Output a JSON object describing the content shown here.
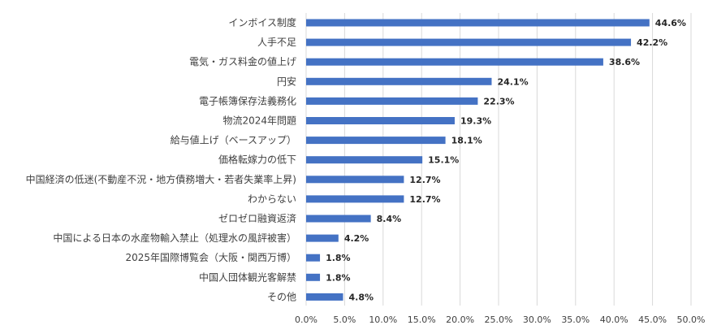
{
  "chart_data": {
    "type": "bar",
    "orientation": "horizontal",
    "categories": [
      "インボイス制度",
      "人手不足",
      "電気・ガス料金の値上げ",
      "円安",
      "電子帳簿保存法義務化",
      "物流2024年問題",
      "給与値上げ（ベースアップ）",
      "価格転嫁力の低下",
      "中国経済の低迷(不動産不況・地方債務増大・若者失業率上昇)",
      "わからない",
      "ゼロゼロ融資返済",
      "中国による日本の水産物輸入禁止（処理水の風評被害）",
      "2025年国際博覧会（大阪・関西万博）",
      "中国人団体観光客解禁",
      "その他"
    ],
    "values": [
      44.6,
      42.2,
      38.6,
      24.1,
      22.3,
      19.3,
      18.1,
      15.1,
      12.7,
      12.7,
      8.4,
      4.2,
      1.8,
      1.8,
      4.8
    ],
    "data_labels": [
      "44.6%",
      "42.2%",
      "38.6%",
      "24.1%",
      "22.3%",
      "19.3%",
      "18.1%",
      "15.1%",
      "12.7%",
      "12.7%",
      "8.4%",
      "4.2%",
      "1.8%",
      "1.8%",
      "4.8%"
    ],
    "xlim": [
      0,
      50
    ],
    "x_ticks": [
      "0.0%",
      "5.0%",
      "10.0%",
      "15.0%",
      "20.0%",
      "25.0%",
      "30.0%",
      "35.0%",
      "40.0%",
      "45.0%",
      "50.0%"
    ],
    "grid": "vertical",
    "legend": "none",
    "bar_color": "#4472C4",
    "title": "",
    "xlabel": "",
    "ylabel": ""
  }
}
